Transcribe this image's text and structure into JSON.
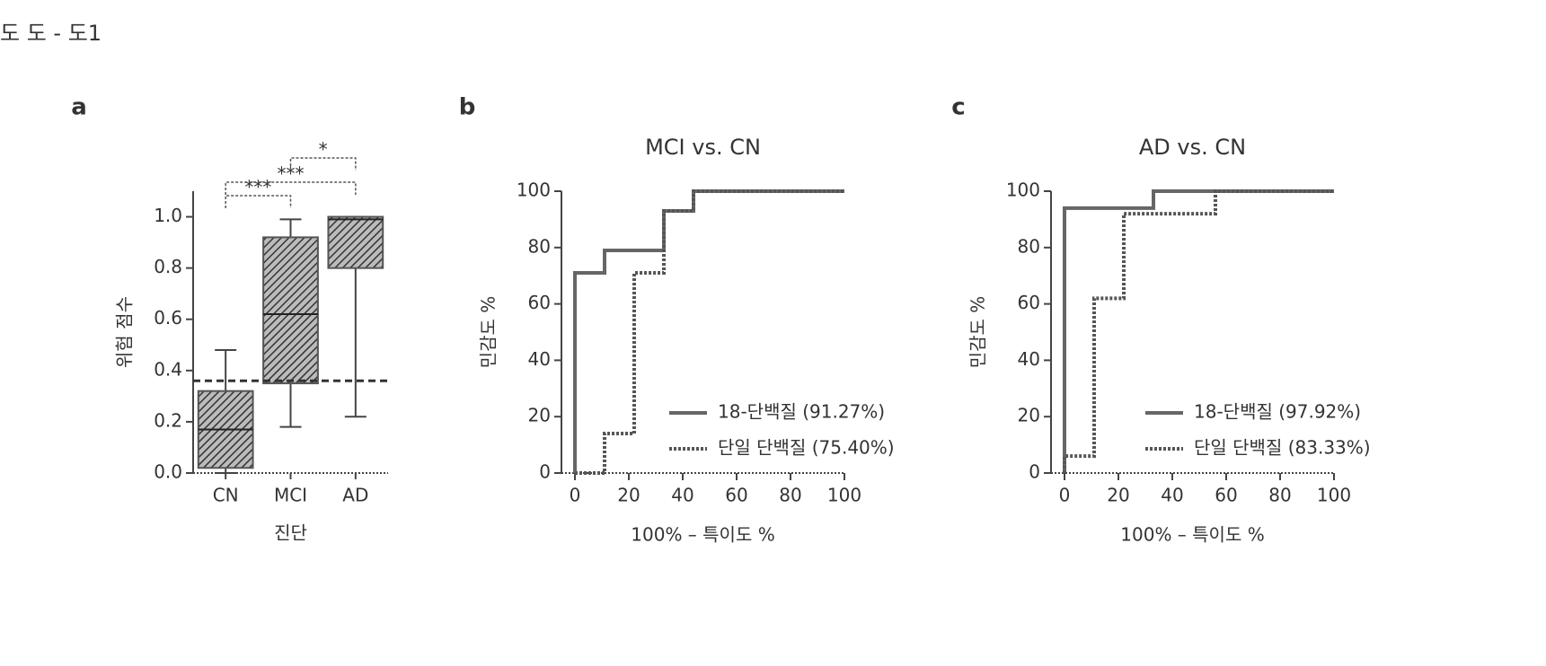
{
  "header": "도 도 - 도1",
  "chart_data": [
    {
      "type": "box",
      "panel": "a",
      "y_label": "위험 점수",
      "x_label": "진단",
      "categories": [
        "CN",
        "MCI",
        "AD"
      ],
      "boxes": [
        {
          "min": 0,
          "q1": 0.02,
          "median": 0.17,
          "q3": 0.32,
          "max": 0.48
        },
        {
          "min": 0.18,
          "q1": 0.35,
          "median": 0.62,
          "q3": 0.92,
          "max": 0.99
        },
        {
          "min": 0.22,
          "q1": 0.8,
          "median": 0.99,
          "q3": 1,
          "max": 1
        }
      ],
      "threshold": 0.36,
      "significance": [
        {
          "between": [
            0,
            1
          ],
          "label": "***"
        },
        {
          "between": [
            0,
            2
          ],
          "label": "***"
        },
        {
          "between": [
            1,
            2
          ],
          "label": "*"
        }
      ],
      "ylim": [
        0,
        1.1
      ],
      "yticks": [
        {
          "value": 0,
          "label": "0.0"
        },
        0.2,
        0.4,
        0.6,
        0.8,
        {
          "value": 1,
          "label": "1.0"
        }
      ],
      "color": "#555555"
    },
    {
      "type": "line",
      "panel": "b",
      "title": "MCI vs. CN",
      "y_label": "민감도 %",
      "x_label": "100% – 특이도 %",
      "series": [
        {
          "name": "18-단백질 (91.27%)",
          "color": "#666666",
          "dash": false,
          "x": [
            0,
            0,
            11,
            11,
            33,
            33,
            44,
            44,
            100
          ],
          "values": [
            0,
            71,
            71,
            79,
            79,
            93,
            93,
            100,
            100
          ]
        },
        {
          "name": "단일 단백질 (75.40%)",
          "color": "#555555",
          "dash": true,
          "x": [
            0,
            11,
            11,
            22,
            22,
            33,
            33,
            44,
            44,
            100
          ],
          "values": [
            0,
            0,
            14,
            14,
            71,
            71,
            93,
            93,
            100,
            100
          ]
        }
      ],
      "xlim": [
        -5,
        100
      ],
      "ylim": [
        0,
        100
      ],
      "xticks": [
        0,
        20,
        40,
        60,
        80,
        100
      ],
      "yticks": [
        0,
        20,
        40,
        60,
        80,
        100
      ]
    },
    {
      "type": "line",
      "panel": "c",
      "title": "AD vs. CN",
      "y_label": "민감도 %",
      "x_label": "100% – 특이도 %",
      "series": [
        {
          "name": "18-단백질 (97.92%)",
          "color": "#666666",
          "dash": false,
          "x": [
            0,
            0,
            33,
            33,
            100
          ],
          "values": [
            0,
            94,
            94,
            100,
            100
          ]
        },
        {
          "name": "단일 단백질 (83.33%)",
          "color": "#555555",
          "dash": true,
          "x": [
            0,
            0,
            11,
            11,
            22,
            22,
            56,
            56,
            100
          ],
          "values": [
            0,
            6,
            6,
            62,
            62,
            92,
            92,
            100,
            100
          ]
        }
      ],
      "xlim": [
        -5,
        100
      ],
      "ylim": [
        0,
        100
      ],
      "xticks": [
        0,
        20,
        40,
        60,
        80,
        100
      ],
      "yticks": [
        0,
        20,
        40,
        60,
        80,
        100
      ]
    }
  ]
}
